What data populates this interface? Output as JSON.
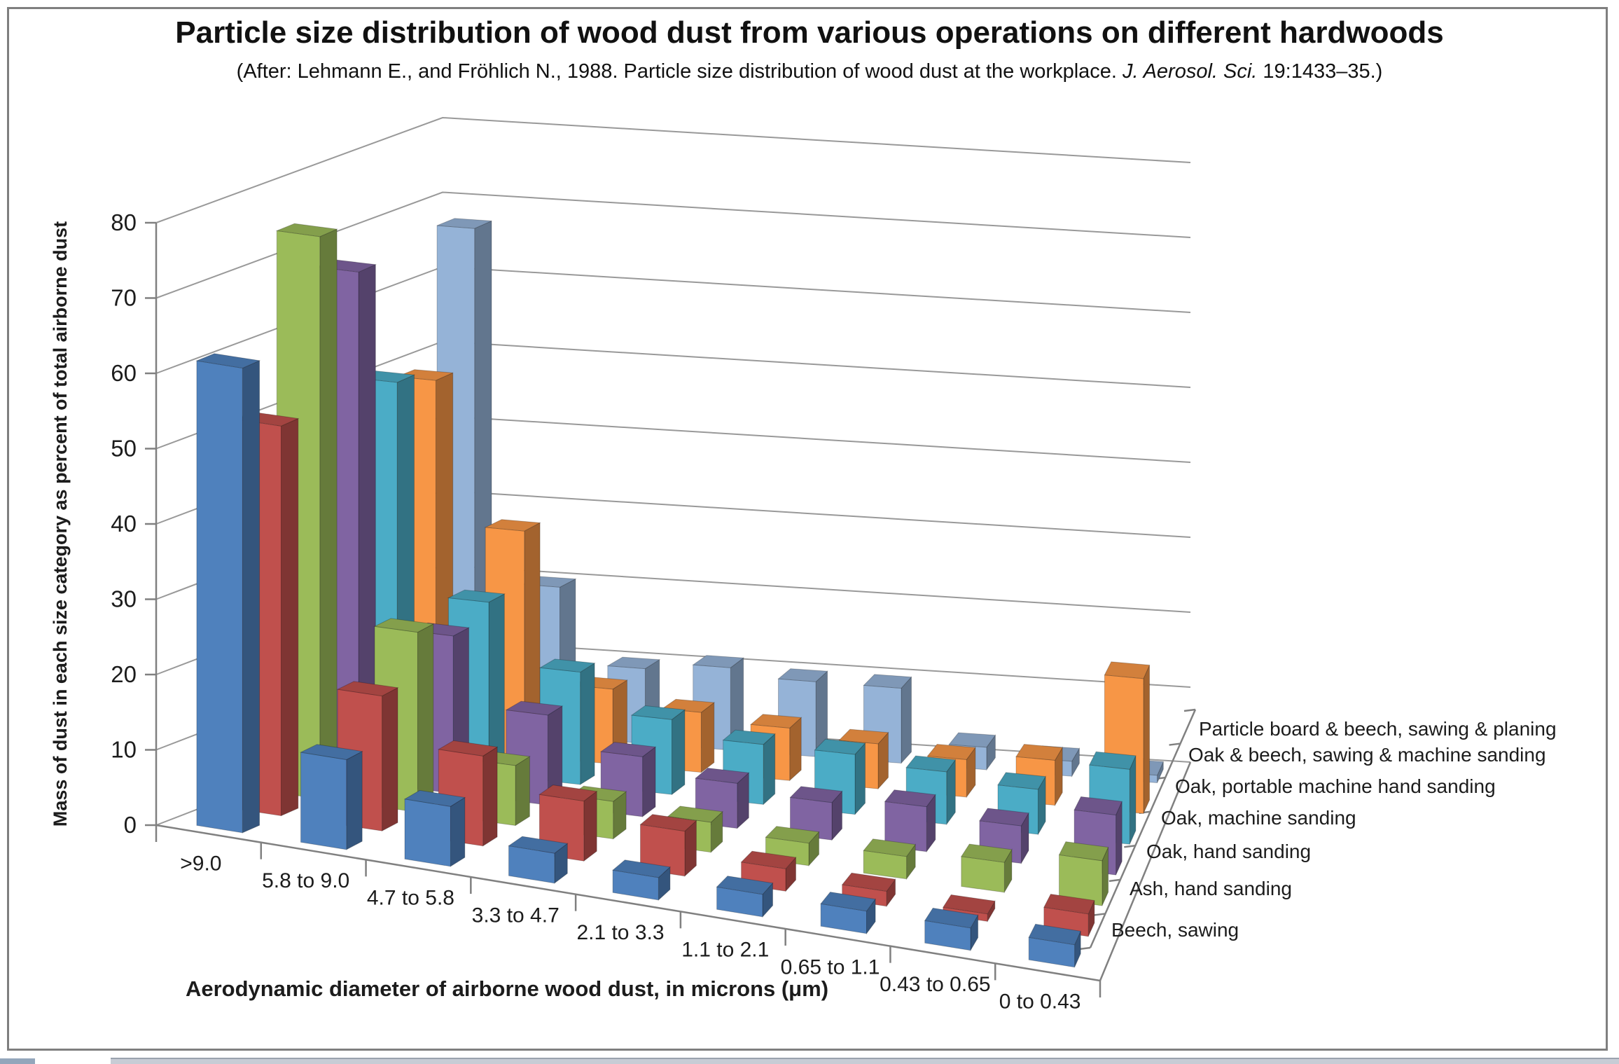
{
  "figure": {
    "title": "Particle size distribution of wood dust from various operations on different hardwoods",
    "subtitle_pre": "(After: Lehmann E., and Fröhlich N., 1988. Particle size distribution of wood dust at the workplace. ",
    "subtitle_italic": "J. Aerosol. Sci.",
    "subtitle_post": "  19:1433–35.)"
  },
  "chart_data": {
    "type": "bar",
    "variant": "3d-column",
    "title": "Particle size distribution of wood dust from various operations on different hardwoods",
    "xlabel": "Aerodynamic diameter of airborne wood dust, in microns (μm)",
    "ylabel": "Mass of dust in each size category as percent of total airborne dust",
    "categories": [
      ">9.0",
      "5.8 to 9.0",
      "4.7 to 5.8",
      "3.3 to 4.7",
      "2.1 to 3.3",
      "1.1 to 2.1",
      "0.65 to 1.1",
      "0.43 to 0.65",
      "0 to 0.43"
    ],
    "depth_order": "front-to-back",
    "series": [
      {
        "name": "Beech, sawing",
        "color": "#4F81BD",
        "values": [
          62,
          12,
          8,
          4,
          3,
          3,
          3,
          3,
          3
        ]
      },
      {
        "name": "Ash, hand sanding",
        "color": "#C0504D",
        "values": [
          52,
          18,
          12,
          8,
          6,
          3,
          2,
          1,
          3
        ]
      },
      {
        "name": "Oak, hand sanding",
        "color": "#9BBB59",
        "values": [
          75,
          24,
          8,
          5,
          4,
          3,
          3,
          4,
          6
        ]
      },
      {
        "name": "Oak, machine sanding",
        "color": "#8064A2",
        "values": [
          68,
          21,
          12,
          8,
          6,
          5,
          6,
          5,
          8
        ]
      },
      {
        "name": "Oak, portable machine hand sanding",
        "color": "#4BACC6",
        "values": [
          51,
          23,
          15,
          10,
          8,
          8,
          7,
          6,
          10
        ]
      },
      {
        "name": "Oak & beech, sawing & machine sanding",
        "color": "#F79646",
        "values": [
          49,
          30,
          10,
          8,
          7,
          6,
          5,
          6,
          18
        ]
      },
      {
        "name": "Particle board & beech, sawing & planing",
        "color": "#95B3D7",
        "values": [
          67,
          20,
          10,
          11,
          10,
          10,
          3,
          2,
          1
        ]
      }
    ],
    "ylim": [
      0,
      80
    ],
    "ytick_step": 10,
    "grid": true,
    "legend_position": "right-depth-axis",
    "colors": {
      "gridline": "#999999",
      "axis": "#808080",
      "figure_border": "#7f7f7f",
      "text": "#1c1c1c"
    }
  }
}
